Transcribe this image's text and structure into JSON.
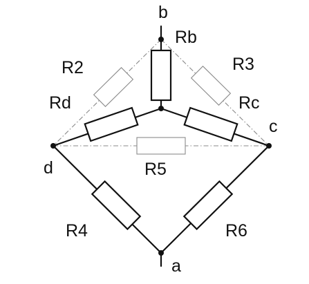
{
  "nodes": {
    "a": "a",
    "b": "b",
    "c": "c",
    "d": "d"
  },
  "resistors": {
    "rb": "Rb",
    "rc": "Rc",
    "rd": "Rd",
    "r2": "R2",
    "r3": "R3",
    "r4": "R4",
    "r5": "R5",
    "r6": "R6"
  },
  "colors": {
    "line": "#111111",
    "dashed_line": "#8a8a8a",
    "background": "#ffffff"
  }
}
